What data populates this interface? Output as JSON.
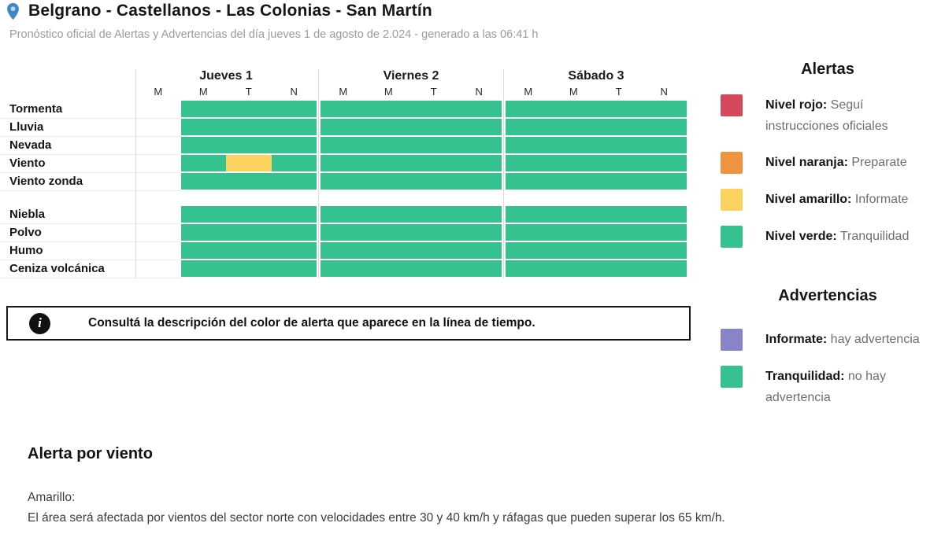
{
  "header": {
    "location_title": "Belgrano - Castellanos - Las Colonias - San Martín",
    "subtitle": "Pronóstico oficial de Alertas y Advertencias del día jueves 1 de agosto de 2.024 - generado a las 06:41 h"
  },
  "timeline": {
    "days": [
      "Jueves 1",
      "Viernes 2",
      "Sábado 3"
    ],
    "periods": [
      "M",
      "M",
      "T",
      "N"
    ],
    "cell_colors": {
      "green": "#35c28f",
      "yellow": "#fbd15f",
      "empty": "#ffffff"
    },
    "groups": [
      {
        "rows": [
          {
            "label": "Tormenta",
            "cells": [
              "empty",
              "green",
              "green",
              "green",
              "green",
              "green",
              "green",
              "green",
              "green",
              "green",
              "green",
              "green"
            ]
          },
          {
            "label": "Lluvia",
            "cells": [
              "empty",
              "green",
              "green",
              "green",
              "green",
              "green",
              "green",
              "green",
              "green",
              "green",
              "green",
              "green"
            ]
          },
          {
            "label": "Nevada",
            "cells": [
              "empty",
              "green",
              "green",
              "green",
              "green",
              "green",
              "green",
              "green",
              "green",
              "green",
              "green",
              "green"
            ]
          },
          {
            "label": "Viento",
            "cells": [
              "empty",
              "green",
              "yellow",
              "green",
              "green",
              "green",
              "green",
              "green",
              "green",
              "green",
              "green",
              "green"
            ]
          },
          {
            "label": "Viento zonda",
            "cells": [
              "empty",
              "green",
              "green",
              "green",
              "green",
              "green",
              "green",
              "green",
              "green",
              "green",
              "green",
              "green"
            ]
          }
        ]
      },
      {
        "rows": [
          {
            "label": "Niebla",
            "cells": [
              "empty",
              "green",
              "green",
              "green",
              "green",
              "green",
              "green",
              "green",
              "green",
              "green",
              "green",
              "green"
            ]
          },
          {
            "label": "Polvo",
            "cells": [
              "empty",
              "green",
              "green",
              "green",
              "green",
              "green",
              "green",
              "green",
              "green",
              "green",
              "green",
              "green"
            ]
          },
          {
            "label": "Humo",
            "cells": [
              "empty",
              "green",
              "green",
              "green",
              "green",
              "green",
              "green",
              "green",
              "green",
              "green",
              "green",
              "green"
            ]
          },
          {
            "label": "Ceniza volcánica",
            "cells": [
              "empty",
              "green",
              "green",
              "green",
              "green",
              "green",
              "green",
              "green",
              "green",
              "green",
              "green",
              "green"
            ]
          }
        ]
      }
    ]
  },
  "infobox": {
    "icon": "info-icon",
    "text": "Consultá la descripción del color de alerta que aparece en la línea de tiempo."
  },
  "legend": {
    "alertas": {
      "title": "Alertas",
      "items": [
        {
          "color": "#d5495c",
          "name": "Nivel rojo:",
          "description": "Seguí instrucciones oficiales"
        },
        {
          "color": "#f0923e",
          "name": "Nivel naranja:",
          "description": "Preparate"
        },
        {
          "color": "#fbd15f",
          "name": "Nivel amarillo:",
          "description": "Informate"
        },
        {
          "color": "#35c28f",
          "name": "Nivel verde:",
          "description": "Tranquilidad"
        }
      ]
    },
    "advertencias": {
      "title": "Advertencias",
      "items": [
        {
          "color": "#8884c9",
          "name": "Informate:",
          "description": "hay advertencia"
        },
        {
          "color": "#35c28f",
          "name": "Tranquilidad:",
          "description": "no hay advertencia"
        }
      ]
    }
  },
  "alert_detail": {
    "title": "Alerta por viento",
    "level": "Amarillo:",
    "description": "El área será afectada por vientos del sector norte con velocidades entre 30 y 40 km/h y ráfagas que pueden superar los 65 km/h."
  },
  "colors": {
    "pin_blue": "#3e87cb",
    "pin_dot": "#bcd7f0"
  }
}
